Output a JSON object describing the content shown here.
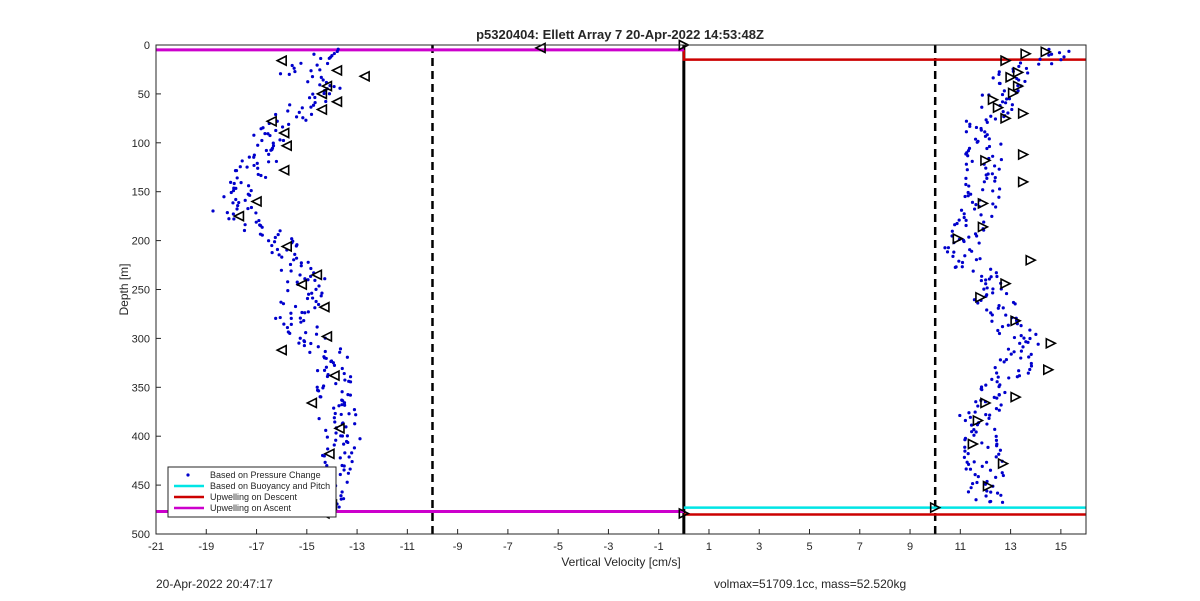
{
  "chart_data": {
    "type": "scatter",
    "title": "p5320404: Ellett Array 7 20-Apr-2022 14:53:48Z",
    "xlabel": "Vertical Velocity [cm/s]",
    "ylabel": "Depth [m]",
    "xlim": [
      -21,
      16
    ],
    "ylim": [
      0,
      500
    ],
    "y_reversed": true,
    "x_ticks": [
      -21,
      -19,
      -17,
      -15,
      -13,
      -11,
      -9,
      -7,
      -5,
      -3,
      -1,
      1,
      3,
      5,
      7,
      9,
      11,
      13,
      15
    ],
    "y_ticks": [
      0,
      50,
      100,
      150,
      200,
      250,
      300,
      350,
      400,
      450,
      500
    ],
    "grid": false,
    "legend_position": "bottom-left",
    "legend": [
      "Based on Pressure Change",
      "Based on Buoyancy and Pitch",
      "Upwelling on Descent",
      "Upwelling on Ascent"
    ],
    "vertical_lines": [
      {
        "x": -10,
        "style": "dashed",
        "color": "#000000"
      },
      {
        "x": 0,
        "style": "solid",
        "color": "#000000"
      },
      {
        "x": 10,
        "style": "dashed",
        "color": "#000000"
      }
    ],
    "series": [
      {
        "name": "Based on Pressure Change",
        "marker": "dot",
        "color": "#0000cc",
        "points_descent": [
          [
            -14,
            5
          ],
          [
            -15.5,
            30
          ],
          [
            -14,
            45
          ],
          [
            -16,
            80
          ],
          [
            -17,
            120
          ],
          [
            -18,
            170
          ],
          [
            -16,
            200
          ],
          [
            -15,
            240
          ],
          [
            -15.5,
            280
          ],
          [
            -14,
            320
          ],
          [
            -14,
            360
          ],
          [
            -13.5,
            400
          ],
          [
            -14,
            440
          ],
          [
            -14.5,
            475
          ]
        ],
        "points_ascent": [
          [
            15,
            5
          ],
          [
            13,
            30
          ],
          [
            12,
            80
          ],
          [
            12,
            150
          ],
          [
            11,
            200
          ],
          [
            12,
            250
          ],
          [
            13.5,
            300
          ],
          [
            13,
            340
          ],
          [
            11.5,
            380
          ],
          [
            12,
            430
          ],
          [
            12,
            470
          ]
        ]
      },
      {
        "name": "Based on Buoyancy and Pitch",
        "marker": "triangle",
        "color": "#000000",
        "points_descent": [
          [
            -5.7,
            3
          ],
          [
            -16,
            16
          ],
          [
            -13.8,
            26
          ],
          [
            -12.7,
            32
          ],
          [
            -14.2,
            42
          ],
          [
            -14.4,
            50
          ],
          [
            -13.8,
            58
          ],
          [
            -14.4,
            66
          ],
          [
            -16.4,
            78
          ],
          [
            -15.9,
            90
          ],
          [
            -15.8,
            103
          ],
          [
            -15.9,
            128
          ],
          [
            -17,
            160
          ],
          [
            -17.7,
            175
          ],
          [
            -15.8,
            206
          ],
          [
            -14.6,
            235
          ],
          [
            -15.2,
            245
          ],
          [
            -14.3,
            268
          ],
          [
            -14.2,
            298
          ],
          [
            -16,
            312
          ],
          [
            -13.9,
            338
          ],
          [
            -14.8,
            366
          ],
          [
            -13.7,
            392
          ],
          [
            -14.1,
            418
          ],
          [
            -14.1,
            445
          ],
          [
            -14,
            470
          ],
          [
            -14.3,
            479
          ]
        ],
        "points_ascent": [
          [
            0,
            0
          ],
          [
            14.4,
            7
          ],
          [
            13.6,
            9
          ],
          [
            12.8,
            16
          ],
          [
            13.3,
            28
          ],
          [
            13,
            33
          ],
          [
            13.3,
            42
          ],
          [
            13.1,
            49
          ],
          [
            12.3,
            56
          ],
          [
            12.5,
            64
          ],
          [
            13.5,
            70
          ],
          [
            12.8,
            75
          ],
          [
            13.5,
            112
          ],
          [
            12,
            118
          ],
          [
            13.5,
            140
          ],
          [
            11.9,
            162
          ],
          [
            11.9,
            186
          ],
          [
            10.9,
            198
          ],
          [
            13.8,
            220
          ],
          [
            12.8,
            244
          ],
          [
            11.8,
            258
          ],
          [
            13.2,
            282
          ],
          [
            14.6,
            305
          ],
          [
            14.5,
            332
          ],
          [
            13.2,
            360
          ],
          [
            12,
            366
          ],
          [
            11.7,
            384
          ],
          [
            11.5,
            408
          ],
          [
            12.7,
            428
          ],
          [
            12.1,
            451
          ],
          [
            10,
            473
          ],
          [
            0,
            479
          ]
        ]
      },
      {
        "name": "Upwelling on Descent",
        "color": "#cc0000",
        "points": [
          [
            0,
            5
          ],
          [
            0,
            15
          ],
          [
            16,
            15
          ],
          [
            0,
            480
          ],
          [
            16,
            480
          ]
        ]
      },
      {
        "name": "Upwelling on Ascent",
        "color": "#cc00cc",
        "points": [
          [
            -21,
            5
          ],
          [
            0,
            5
          ],
          [
            -21,
            477
          ],
          [
            0,
            477
          ]
        ]
      }
    ]
  },
  "footer": {
    "timestamp": "20-Apr-2022 20:47:17",
    "info": "volmax=51709.1cc, mass=52.520kg"
  },
  "colors": {
    "pressure_marker": "#0000cc",
    "buoyancy_marker": "#000000",
    "buoyancy_line": "#00e5e5",
    "descent_line": "#cc0000",
    "ascent_line": "#cc00cc"
  }
}
